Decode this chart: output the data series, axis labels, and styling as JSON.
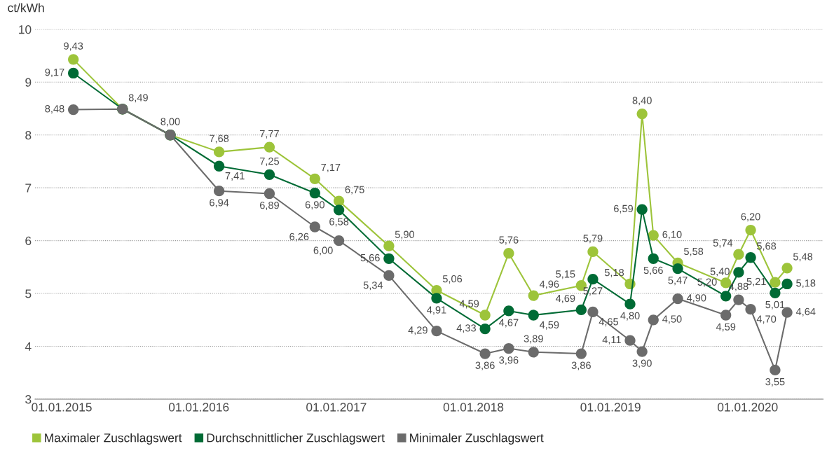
{
  "chart_data": {
    "type": "line",
    "ylabel": "ct/kWh",
    "x": [
      "2015-02-01",
      "2015-06-12",
      "2015-10-17",
      "2016-02-24",
      "2016-07-07",
      "2016-11-05",
      "2017-01-08",
      "2017-05-21",
      "2017-09-25",
      "2018-02-01",
      "2018-04-05",
      "2018-06-10",
      "2018-10-15",
      "2018-11-15",
      "2019-02-22",
      "2019-03-26",
      "2019-04-25",
      "2019-06-29",
      "2019-11-04",
      "2019-12-08",
      "2020-01-09",
      "2020-03-14",
      "2020-04-15"
    ],
    "series": [
      {
        "name": "Maximaler Zuschlagswert",
        "color": "#9dc43a",
        "values": [
          9.43,
          8.49,
          8.0,
          7.68,
          7.77,
          7.17,
          6.75,
          5.9,
          5.06,
          4.59,
          5.76,
          4.96,
          5.15,
          5.79,
          5.18,
          8.4,
          6.1,
          5.58,
          5.2,
          5.74,
          6.2,
          5.21,
          5.48
        ],
        "value_labels": [
          "9,43",
          null,
          null,
          "7,68",
          "7,77",
          "7,17",
          "6,75",
          "5,90",
          "5,06",
          "4,59",
          "5,76",
          "4,96",
          "5,15",
          "5,79",
          "5,18",
          "8,40",
          "6,10",
          "5,58",
          "5,20",
          "5,74",
          "6,20",
          "5,21",
          "5,48"
        ]
      },
      {
        "name": "Durchschnittlicher Zuschlagswert",
        "color": "#006b35",
        "values": [
          9.17,
          8.49,
          8.0,
          7.41,
          7.25,
          6.9,
          6.58,
          5.66,
          4.91,
          4.33,
          4.67,
          4.59,
          4.69,
          5.27,
          4.8,
          6.59,
          5.66,
          5.47,
          4.95,
          5.4,
          5.68,
          5.01,
          5.18
        ],
        "value_labels": [
          "9,17",
          "8,49",
          "8,00",
          "7,41",
          "7,25",
          "6,90",
          "6,58",
          "5,66",
          "4,91",
          "4,33",
          "4,67",
          "4,59",
          "4,69",
          "5,27",
          "4,80",
          "6,59",
          "5,66",
          "5,47",
          null,
          "5,40",
          "5,68",
          "5,01",
          "5,18"
        ]
      },
      {
        "name": "Minimaler Zuschlagswert",
        "color": "#6b6b6b",
        "values": [
          8.48,
          8.49,
          8.0,
          6.94,
          6.89,
          6.26,
          6.0,
          5.34,
          4.29,
          3.86,
          3.96,
          3.89,
          3.86,
          4.65,
          4.11,
          3.9,
          4.5,
          4.9,
          4.59,
          4.88,
          4.7,
          3.55,
          4.64
        ],
        "value_labels": [
          "8,48",
          null,
          null,
          "6,94",
          "6,89",
          "6,26",
          "6,00",
          "5,34",
          "4,29",
          "3,86",
          "3,96",
          "3,89",
          "3,86",
          "4,65",
          "4,11",
          "3,90",
          "4,50",
          "4,90",
          "4,59",
          "4,88",
          "4,70",
          "3,55",
          "4,64"
        ]
      }
    ],
    "xlim": [
      "2014-10-22",
      "2020-07-20"
    ],
    "xticks": [
      {
        "value": "2015-01-01",
        "label": "01.01.2015"
      },
      {
        "value": "2016-01-01",
        "label": "01.01.2016"
      },
      {
        "value": "2017-01-01",
        "label": "01.01.2017"
      },
      {
        "value": "2018-01-01",
        "label": "01.01.2018"
      },
      {
        "value": "2019-01-01",
        "label": "01.01.2019"
      },
      {
        "value": "2020-01-01",
        "label": "01.01.2020"
      }
    ],
    "ylim": [
      3,
      10
    ],
    "yticks": [
      3,
      4,
      5,
      6,
      7,
      8,
      9,
      10
    ],
    "grid": "y",
    "marker": "circle",
    "line_style": "solid",
    "legend": "bottom left"
  }
}
